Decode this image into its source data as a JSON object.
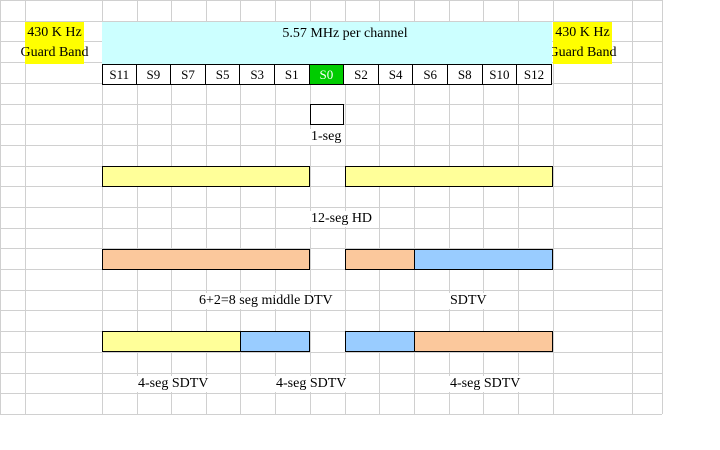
{
  "guard_bands": {
    "left": {
      "line1": "430 K Hz",
      "line2": "Guard Band"
    },
    "right": {
      "line1": "430 K Hz",
      "line2": "Guard Band"
    }
  },
  "channel": {
    "label": "5.57 MHz per channel"
  },
  "segments": [
    "S11",
    "S9",
    "S7",
    "S5",
    "S3",
    "S1",
    "S0",
    "S2",
    "S4",
    "S6",
    "S8",
    "S10",
    "S12"
  ],
  "active_segment": "S0",
  "labels": {
    "one_seg": "1-seg",
    "hd": "12-seg HD",
    "middle": "6+2=8 seg middle DTV",
    "sdtv": "SDTV",
    "four_seg_a": "4-seg SDTV",
    "four_seg_b": "4-seg SDTV",
    "four_seg_c": "4-seg SDTV"
  },
  "colors": {
    "guard": "#ffff00",
    "channel": "#ccffff",
    "active_segment": "#00cc00",
    "hd": "#ffff99",
    "middle": "#fbc89c",
    "sdtv": "#99ccff"
  }
}
